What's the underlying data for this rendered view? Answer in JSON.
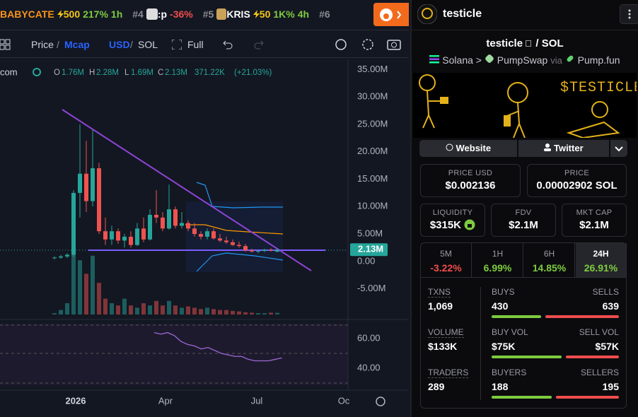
{
  "ticker": [
    {
      "name": "BABYCATE",
      "boost": "500",
      "change": "217%",
      "age": "1h"
    },
    {
      "rank": "#4",
      "name": ":p",
      "change": "-36%"
    },
    {
      "rank": "#5",
      "name": "KRIS",
      "boost": "50",
      "change": "1K%",
      "age": "4h"
    },
    {
      "rank": "#6"
    }
  ],
  "toolbar": {
    "price": "Price",
    "mcap": "Mcap",
    "usd": "USD",
    "sol": "SOL",
    "full": "Full",
    "separator": "/"
  },
  "chart": {
    "type": "candlestick",
    "legend": {
      "source": "com",
      "o_key": "O",
      "o": "1.76M",
      "h_key": "H",
      "h": "2.28M",
      "l_key": "L",
      "l": "1.69M",
      "c_key": "C",
      "c": "2.13M",
      "volume": "371.22K",
      "change": "(+21.03%)"
    },
    "ylim": [
      -9.7,
      36.1
    ],
    "yticks": [
      {
        "value": 35,
        "label": "35.00M"
      },
      {
        "value": 30,
        "label": "30.00M"
      },
      {
        "value": 25,
        "label": "25.00M"
      },
      {
        "value": 20,
        "label": "20.00M"
      },
      {
        "value": 15,
        "label": "15.00M"
      },
      {
        "value": 10,
        "label": "10.00M"
      },
      {
        "value": 5,
        "label": "5.00M"
      },
      {
        "value": 0,
        "label": "0.00"
      },
      {
        "value": -5,
        "label": "-5.00M"
      }
    ],
    "last_price": {
      "value": 2.13,
      "label": "2.13M"
    },
    "xticks": [
      "2026",
      "Apr",
      "Jul",
      "Oc"
    ],
    "candles": [
      [
        0.6,
        0.9,
        0.4,
        0.7
      ],
      [
        0.7,
        1.2,
        0.5,
        0.9
      ],
      [
        0.9,
        1.5,
        0.6,
        1.2
      ],
      [
        1.2,
        13,
        0.8,
        12.5
      ],
      [
        12.5,
        25,
        8,
        16
      ],
      [
        16,
        22,
        9,
        11
      ],
      [
        11,
        24,
        10,
        17
      ],
      [
        17,
        18,
        5,
        5.5
      ],
      [
        5.5,
        8,
        3,
        4
      ],
      [
        4,
        6.5,
        3,
        5.5
      ],
      [
        5.5,
        6,
        3.2,
        3.8
      ],
      [
        3.8,
        5,
        2.5,
        4.5
      ],
      [
        4.5,
        5.5,
        2.5,
        3
      ],
      [
        3,
        7,
        2.8,
        6
      ],
      [
        6,
        8,
        3.5,
        4
      ],
      [
        4,
        9.5,
        3.8,
        8.5
      ],
      [
        8.5,
        13,
        7,
        8
      ],
      [
        8,
        9,
        5.5,
        6
      ],
      [
        6,
        14,
        5.8,
        9.5
      ],
      [
        9.5,
        10,
        6,
        6.5
      ],
      [
        6.5,
        9,
        6,
        7
      ],
      [
        7,
        7.5,
        5.5,
        6
      ],
      [
        6,
        7,
        4.5,
        5
      ],
      [
        5,
        5.5,
        4,
        4.5
      ],
      [
        4.5,
        6,
        4,
        5.5
      ],
      [
        5.5,
        6,
        4,
        4.2
      ],
      [
        4.2,
        5,
        3.5,
        3.8
      ],
      [
        3.8,
        4.5,
        3.2,
        3.5
      ],
      [
        3.5,
        4,
        2.8,
        3
      ],
      [
        3,
        3.6,
        2.5,
        2.8
      ],
      [
        2.8,
        3.2,
        1.8,
        2
      ],
      [
        2,
        2.3,
        1.6,
        1.8
      ],
      [
        1.8,
        2.2,
        1.5,
        1.9
      ],
      [
        1.9,
        2.3,
        1.7,
        2.1
      ],
      [
        2.1,
        2.4,
        1.8,
        2.0
      ],
      [
        1.76,
        2.28,
        1.69,
        2.13
      ]
    ],
    "volumes": [
      0.3,
      1.0,
      2.5,
      14,
      12,
      9,
      13,
      7,
      3.5,
      2.5,
      2,
      3.5,
      2,
      1.5,
      2.5,
      2,
      3,
      2,
      3,
      2,
      1.5,
      1.8,
      1.5,
      1.2,
      1.5,
      1.2,
      1,
      1,
      0.8,
      0.7,
      0.5,
      0.4,
      0.3,
      0.3,
      0.4,
      0.37
    ],
    "rsi": {
      "ylim": [
        28.6,
        70
      ],
      "yticks": [
        {
          "value": 60,
          "label": "60.00"
        },
        {
          "value": 40,
          "label": "40.00"
        }
      ],
      "values": [
        64,
        63,
        64,
        62,
        58,
        56,
        55,
        53,
        54,
        52,
        50,
        49,
        48,
        48,
        46,
        45,
        45,
        45,
        46,
        47
      ]
    }
  },
  "token": {
    "name": "testicle",
    "pair_base": "testicle",
    "pair_sep": "/",
    "pair_quote": "SOL",
    "chain": "Solana",
    "dex": "PumpSwap",
    "via": "via",
    "launchpad": "Pump.fun",
    "banner": "$TESTICLE"
  },
  "links": [
    "Website",
    "Twitter"
  ],
  "prices": [
    {
      "label": "PRICE USD",
      "value": "$0.002136"
    },
    {
      "label": "PRICE",
      "value": "0.00002902 SOL"
    }
  ],
  "metrics": [
    {
      "label": "LIQUIDITY",
      "value": "$315K"
    },
    {
      "label": "FDV",
      "value": "$2.1M"
    },
    {
      "label": "MKT CAP",
      "value": "$2.1M"
    }
  ],
  "timeframes": [
    {
      "label": "5M",
      "change": "-3.22%"
    },
    {
      "label": "1H",
      "change": "6.99%"
    },
    {
      "label": "6H",
      "change": "14.85%"
    },
    {
      "label": "24H",
      "change": "26.91%"
    }
  ],
  "stats": [
    {
      "label": "TXNS",
      "value": "1,069",
      "buy_label": "BUYS",
      "buy": 430,
      "sell_label": "SELLS",
      "sell": 639
    },
    {
      "label": "VOLUME",
      "value": "$133K",
      "buy_label": "BUY VOL",
      "buy": {
        "value": 75000,
        "label": "$75K"
      },
      "sell_label": "SELL VOL",
      "sell": {
        "value": 57000,
        "label": "$57K"
      }
    },
    {
      "label": "TRADERS",
      "value": "289",
      "buy_label": "BUYERS",
      "buy": 188,
      "sell_label": "SELLERS",
      "sell": 195
    }
  ]
}
